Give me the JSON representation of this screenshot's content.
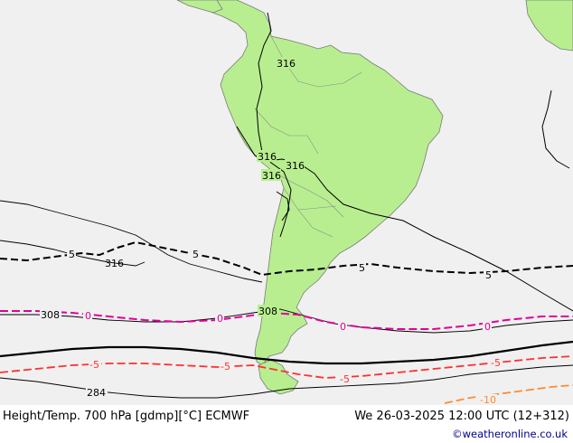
{
  "header": {
    "title": "Height/Temp. 700 hPa [gdmp][°C] ECMWF",
    "valid_time": "We 26-03-2025 12:00 UTC (12+312)",
    "credit": "©weatheronline.co.uk"
  },
  "colors": {
    "ocean": "#f0f0f0",
    "land": "#b8ee90",
    "land_outline": "#7a7a7a",
    "height_contour": "#000000",
    "temp_5": "#000000",
    "temp_0": "#e0009a",
    "temp_minus5": "#ff3030",
    "temp_minus10": "#ff8a30"
  },
  "height_labels": [
    "316",
    "316",
    "316",
    "316",
    "308",
    "308",
    "284"
  ],
  "temp_labels": {
    "t5": [
      "5",
      "5",
      "5",
      "5"
    ],
    "t0": [
      "0",
      "0",
      "0",
      "0"
    ],
    "tm5": [
      "-5",
      "-5",
      "-5",
      "-5"
    ],
    "tm10": [
      "-10"
    ]
  }
}
